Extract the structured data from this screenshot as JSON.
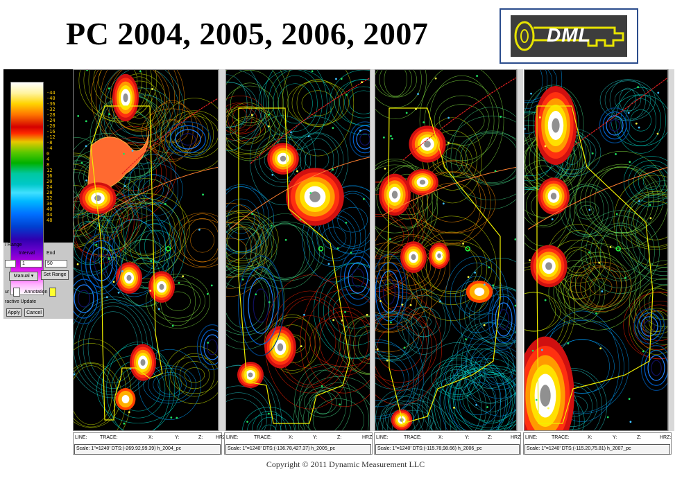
{
  "title": "PC 2004, 2005, 2006, 2007",
  "logo": {
    "text": "DML",
    "colors": {
      "border": "#2a4c8c",
      "frame": "#e8e400",
      "background": "#3d3d3d"
    }
  },
  "color_scale": {
    "ticks": [
      "-44",
      "-40",
      "-36",
      "-32",
      "-28",
      "-24",
      "-20",
      "-16",
      "-12",
      "-8",
      "-4",
      "0",
      "4",
      "8",
      "12",
      "16",
      "20",
      "24",
      "28",
      "32",
      "36",
      "40",
      "44",
      "48"
    ]
  },
  "controls": {
    "range_label": "/ Range",
    "interval_label": "Interval",
    "end_label": "End",
    "start_value": "",
    "interval_value": "1",
    "end_value": "50",
    "mode_select": "Manual",
    "set_range_button": "Set Range",
    "contour_label": "ur",
    "annotation_label": "Annotation",
    "interactive_label": "ractive Update",
    "apply_button": "Apply",
    "cancel_button": "Cancel"
  },
  "panels": [
    {
      "id": "2004",
      "status_headers": [
        "LINE:",
        "TRACE:",
        "X:",
        "Y:",
        "Z:",
        "HRZ"
      ],
      "scale": "Scale: 1\"=1240' DTS:(-269.92,99.39) h_2004_pc"
    },
    {
      "id": "2005",
      "status_headers": [
        "LINE:",
        "TRACE:",
        "X:",
        "Y:",
        "Z:",
        "HRZ"
      ],
      "scale": "Scale: 1\"=1240' DTS:(-136.78,427.37) h_2005_pc"
    },
    {
      "id": "2006",
      "status_headers": [
        "LINE:",
        "TRACE:",
        "X:",
        "Y:",
        "Z:",
        "HRZ"
      ],
      "scale": "Scale: 1\"=1240' DTS:(-115.78,98.66) h_2006_pc"
    },
    {
      "id": "2007",
      "status_headers": [
        "LINE:",
        "TRACE:",
        "X:",
        "Y:",
        "Z:",
        "HRZ:"
      ],
      "scale": "Scale: 1\"=1240' DTS:(-115.20,75.81) h_2007_pc"
    }
  ],
  "copyright": "Copyright © 2011  Dynamic  Measurement LLC"
}
